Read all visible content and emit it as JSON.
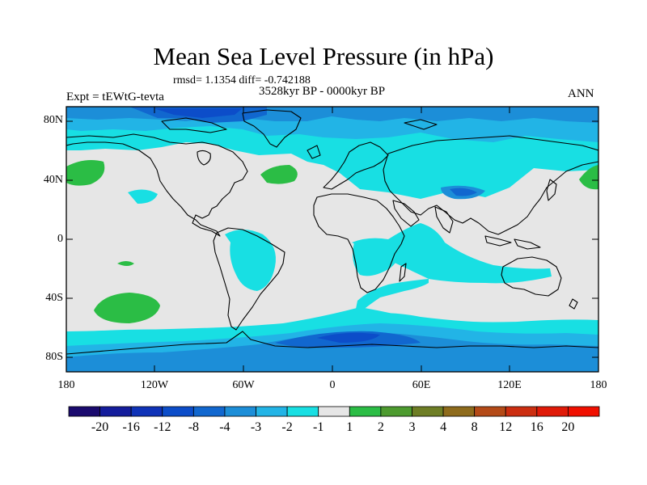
{
  "title": "Mean Sea Level Pressure (in hPa)",
  "stats": "rmsd= 1.1354 diff= -0.742188",
  "period": "3528kyr BP - 0000kyr BP",
  "experiment": "Expt = tEWtG-tevta",
  "season": "ANN",
  "lat_labels": [
    "80N",
    "40N",
    "0",
    "40S",
    "80S"
  ],
  "lon_labels": [
    "180",
    "120W",
    "60W",
    "0",
    "60E",
    "120E",
    "180"
  ],
  "colorbar": {
    "labels": [
      "-20",
      "-16",
      "-12",
      "-8",
      "-4",
      "-3",
      "-2",
      "-1",
      "1",
      "2",
      "3",
      "4",
      "8",
      "12",
      "16",
      "20"
    ],
    "colors": [
      "#1a0a6e",
      "#141d9c",
      "#0f33b8",
      "#0c4dc9",
      "#1167cf",
      "#1c8ed8",
      "#22b4e6",
      "#18dfe3",
      "#e6e6e6",
      "#2bbd45",
      "#4d9b2f",
      "#6e7e25",
      "#8e6b1c",
      "#b44a17",
      "#cc2e10",
      "#e01a08",
      "#f00f00"
    ]
  }
}
